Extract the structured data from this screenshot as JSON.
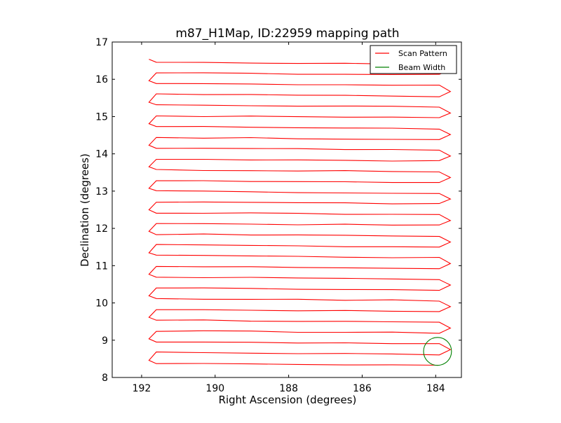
{
  "chart_data": {
    "type": "line",
    "title": "m87_H1Map, ID:22959 mapping path",
    "xlabel": "Right Ascension (degrees)",
    "ylabel": "Declination (degrees)",
    "xlim": [
      192.8,
      183.3
    ],
    "ylim": [
      8,
      17
    ],
    "x_reversed": true,
    "x_ticks": [
      192,
      190,
      188,
      186,
      184
    ],
    "x_tick_labels": [
      "192",
      "190",
      "188",
      "186",
      "184"
    ],
    "y_ticks": [
      8,
      9,
      10,
      11,
      12,
      13,
      14,
      15,
      16,
      17
    ],
    "y_tick_labels": [
      "8",
      "9",
      "10",
      "11",
      "12",
      "13",
      "14",
      "15",
      "16",
      "17"
    ],
    "grid": false,
    "legend_position": "upper-right",
    "legend": [
      {
        "label": "Scan Pattern",
        "color": "#ff0000"
      },
      {
        "label": "Beam Width",
        "color": "#008000"
      }
    ],
    "scan_pattern": {
      "color": "#ff0000",
      "rows": 29,
      "dec_start": 8.33,
      "dec_step": 0.2885,
      "ra_west": 191.6,
      "ra_east": 183.9,
      "ra_turn_west": 191.8,
      "ra_turn_east": 183.6
    },
    "beam_width": {
      "color": "#008000",
      "center": [
        183.95,
        8.7
      ],
      "radius_deg": 0.38
    }
  }
}
